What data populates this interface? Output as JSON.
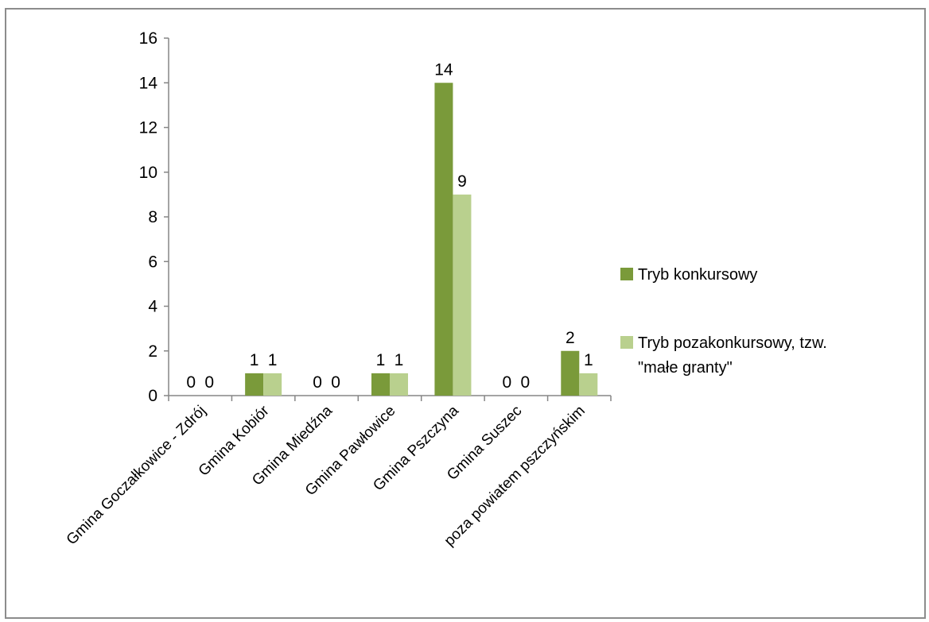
{
  "chart_data": {
    "type": "bar",
    "categories": [
      "Gmina Goczałkowice - Zdrój",
      "Gmina Kobiór",
      "Gmina Miedźna",
      "Gmina Pawłowice",
      "Gmina Pszczyna",
      "Gmina Suszec",
      "poza powiatem pszczyńskim"
    ],
    "series": [
      {
        "name": "Tryb konkursowy",
        "values": [
          0,
          1,
          0,
          1,
          14,
          0,
          2
        ],
        "color": "#7a9a3a"
      },
      {
        "name": "Tryb pozakonkursowy, tzw. \"małe granty\"",
        "values": [
          0,
          1,
          0,
          1,
          9,
          0,
          1
        ],
        "color": "#b9d08e"
      }
    ],
    "legend_lines": [
      [
        "Tryb konkursowy"
      ],
      [
        "Tryb pozakonkursowy, tzw.",
        "\"małe granty\""
      ]
    ],
    "yticks": [
      "0",
      "2",
      "4",
      "6",
      "8",
      "10",
      "12",
      "14",
      "16"
    ],
    "ylim": [
      0,
      16
    ],
    "grid": false,
    "legend_position": "right",
    "data_labels": true
  }
}
